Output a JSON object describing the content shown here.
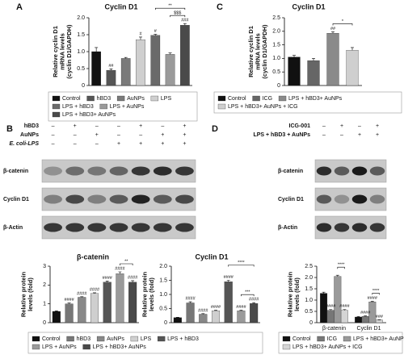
{
  "chart_data": [
    {
      "panel": "A",
      "type": "bar",
      "title": "Cyclin D1",
      "ylabel": [
        "Relative cyclin D1",
        "mRNA levels",
        "(cyclin D1/GAPDH)"
      ],
      "categories": [
        "Control",
        "hBD3",
        "AuNPs",
        "LPS",
        "LPS + hBD3",
        "LPS + AuNPs",
        "LPS + hBD3+ AuNPs"
      ],
      "values": [
        1.0,
        0.45,
        0.8,
        1.35,
        1.48,
        0.92,
        1.78
      ],
      "errors": [
        0.12,
        0.04,
        0.03,
        0.08,
        0.03,
        0.04,
        0.05
      ],
      "colors": [
        "#111111",
        "#555555",
        "#7a7a7a",
        "#cfcfcf",
        "#6a6a6a",
        "#9a9a9a",
        "#4a4a4a"
      ],
      "ylim": [
        0,
        2
      ],
      "yticks": [
        0,
        0.5,
        {
          "value": 1,
          "label": "1.0"
        },
        1.5,
        {
          "value": 2,
          "label": "2.0"
        }
      ],
      "annotations": [
        {
          "text": "##",
          "category": 1
        },
        {
          "text": "#",
          "category": 3
        },
        {
          "text": "#",
          "category": 4
        },
        {
          "text": "###",
          "category": 6
        }
      ],
      "brackets": [
        {
          "text": "$$$",
          "from": 5,
          "to": 6
        },
        {
          "text": "**",
          "from": 4,
          "to": 6
        }
      ]
    },
    {
      "panel": "C",
      "type": "bar",
      "title": "Cyclin D1",
      "ylabel": [
        "Relative cyclin D1",
        "mRNA levels",
        "(cyclin D1/GAPDH)"
      ],
      "categories": [
        "Control",
        "ICG",
        "LPS + hBD3+ AuNPs",
        "LPS + hBD3+ AuNPs + ICG"
      ],
      "values": [
        1.05,
        0.92,
        1.93,
        1.3
      ],
      "errors": [
        0.06,
        0.08,
        0.05,
        0.1
      ],
      "colors": [
        "#111111",
        "#666666",
        "#8a8a8a",
        "#cfcfcf"
      ],
      "ylim": [
        0,
        2.5
      ],
      "yticks": [
        0,
        0.5,
        {
          "value": 1,
          "label": "1.0"
        },
        1.5,
        {
          "value": 2,
          "label": "2.0"
        },
        2.5
      ],
      "annotations": [
        {
          "text": "##",
          "category": 2
        }
      ],
      "brackets": [
        {
          "text": "*",
          "from": 2,
          "to": 3
        }
      ]
    },
    {
      "type": "bar",
      "title": "β-catenin",
      "ylabel": [
        "Relative protein",
        "levels (fold)"
      ],
      "categories": [
        "Control",
        "hBD3",
        "AuNPs",
        "LPS",
        "LPS + hBD3",
        "LPS + AuNPs",
        "LPS + hBD3+ AuNPs"
      ],
      "values": [
        0.6,
        1.0,
        1.35,
        1.55,
        2.15,
        2.6,
        2.15
      ],
      "errors": [
        0.03,
        0.04,
        0.03,
        0.04,
        0.06,
        0.1,
        0.08
      ],
      "colors": [
        "#111111",
        "#777777",
        "#888888",
        "#cfcfcf",
        "#555555",
        "#9a9a9a",
        "#4a4a4a"
      ],
      "ylim": [
        0,
        3
      ],
      "yticks": [
        0,
        1,
        2,
        3
      ],
      "annotations": [
        {
          "text": "####",
          "category": 1
        },
        {
          "text": "####",
          "category": 2
        },
        {
          "text": "####",
          "category": 3
        },
        {
          "text": "####",
          "category": 4
        },
        {
          "text": "####",
          "category": 5
        },
        {
          "text": "####",
          "category": 6
        }
      ],
      "brackets": [
        {
          "text": "**",
          "from": 5,
          "to": 6
        }
      ]
    },
    {
      "type": "bar",
      "title": "Cyclin D1",
      "ylabel": [
        "Relative protein",
        "levels (fold)"
      ],
      "categories": [
        "Control",
        "hBD3",
        "AuNPs",
        "LPS",
        "LPS + hBD3",
        "LPS + AuNPs",
        "LPS + hBD3+ AuNPs"
      ],
      "values": [
        0.18,
        0.7,
        0.3,
        0.42,
        1.45,
        0.42,
        0.68
      ],
      "errors": [
        0.01,
        0.04,
        0.02,
        0.02,
        0.05,
        0.02,
        0.03
      ],
      "colors": [
        "#111111",
        "#777777",
        "#888888",
        "#cfcfcf",
        "#555555",
        "#9a9a9a",
        "#4a4a4a"
      ],
      "ylim": [
        0,
        2
      ],
      "yticks": [
        0,
        0.5,
        {
          "value": 1,
          "label": "1.0"
        },
        1.5,
        {
          "value": 2,
          "label": "2.0"
        }
      ],
      "annotations": [
        {
          "text": "####",
          "category": 1
        },
        {
          "text": "####",
          "category": 2
        },
        {
          "text": "####",
          "category": 3
        },
        {
          "text": "####",
          "category": 4
        },
        {
          "text": "####",
          "category": 5
        },
        {
          "text": "####",
          "category": 6
        }
      ],
      "brackets": [
        {
          "text": "***",
          "from": 5,
          "to": 6
        },
        {
          "text": "****",
          "from": 4,
          "to": 6
        }
      ]
    },
    {
      "type": "bar",
      "ylabel": [
        "Relative protein",
        "levels (fold)"
      ],
      "categories": [
        "β-catenin",
        "Cyclin D1"
      ],
      "series": [
        {
          "name": "Control",
          "color": "#111111",
          "values": [
            1.3,
            0.25
          ],
          "errors": [
            0.05,
            0.02
          ]
        },
        {
          "name": "ICG",
          "color": "#777777",
          "values": [
            0.55,
            0.28
          ],
          "errors": [
            0.03,
            0.02
          ]
        },
        {
          "name": "LPS + hBD3+ AuNPs",
          "color": "#9a9a9a",
          "values": [
            2.05,
            0.92
          ],
          "errors": [
            0.05,
            0.03
          ]
        },
        {
          "name": "LPS + hBD3+ AuNPs + ICG",
          "color": "#d5d5d5",
          "values": [
            0.55,
            0.12
          ],
          "errors": [
            0.03,
            0.01
          ]
        }
      ],
      "ylim": [
        0,
        2.5
      ],
      "yticks": [
        0,
        0.5,
        {
          "value": 1,
          "label": "1.0"
        },
        1.5,
        {
          "value": 2,
          "label": "2.0"
        },
        2.5
      ],
      "annotations": [
        {
          "text": "####",
          "category": 0,
          "series": 1
        },
        {
          "text": "####",
          "category": 0,
          "series": 3
        },
        {
          "text": "####",
          "category": 1,
          "series": 1
        },
        {
          "text": "####",
          "category": 1,
          "series": 2
        },
        {
          "text": "###",
          "category": 1,
          "series": 3
        }
      ],
      "brackets": [
        {
          "text": "****",
          "category": 0,
          "from": 2,
          "to": 3
        },
        {
          "text": "****",
          "category": 1,
          "from": 2,
          "to": 3
        }
      ]
    }
  ],
  "blots": [
    {
      "panel": "B",
      "conditions": [
        {
          "label": "hBD3",
          "signs": [
            "–",
            "+",
            "–",
            "–",
            "+",
            "–",
            "+"
          ]
        },
        {
          "label": "AuNPs",
          "signs": [
            "–",
            "–",
            "+",
            "–",
            "–",
            "+",
            "+"
          ]
        },
        {
          "label": "E. coli-LPS",
          "signs": [
            "–",
            "–",
            "–",
            "+",
            "+",
            "+",
            "+"
          ]
        }
      ],
      "bands": [
        "β-catenin",
        "Cyclin D1",
        "β-Actin"
      ]
    },
    {
      "panel": "D",
      "conditions": [
        {
          "label": "ICG-001",
          "signs": [
            "–",
            "+",
            "–",
            "+"
          ]
        },
        {
          "label": "LPS + hBD3 + AuNPs",
          "signs": [
            "–",
            "–",
            "+",
            "+"
          ]
        }
      ],
      "bands": [
        "β-catenin",
        "Cyclin D1",
        "β-Actin"
      ]
    }
  ]
}
